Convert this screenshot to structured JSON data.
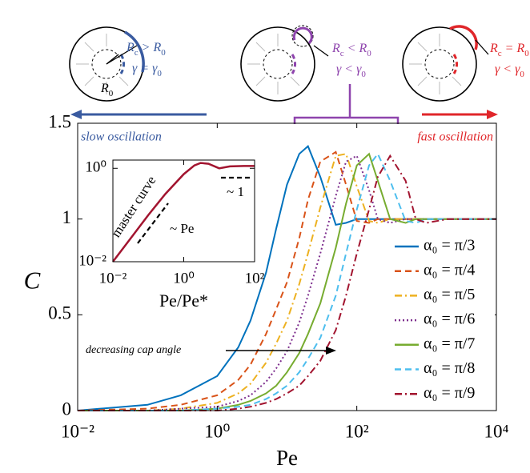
{
  "chart_data": [
    {
      "type": "line",
      "x_scale": "log",
      "x_label": "Pe",
      "y_label": "C",
      "xlim": [
        0.01,
        10000
      ],
      "ylim": [
        0,
        1.5
      ],
      "xticks": [
        {
          "value": 0.01,
          "label": "10⁻²"
        },
        {
          "value": 1,
          "label": "10⁰"
        },
        {
          "value": 100,
          "label": "10²"
        },
        {
          "value": 10000,
          "label": "10⁴"
        }
      ],
      "yticks": [
        0,
        0.5,
        1,
        1.5
      ],
      "x": [
        0.01,
        0.1,
        0.3,
        1,
        2,
        3,
        5,
        7,
        10,
        15,
        20,
        30,
        50,
        70,
        100,
        150,
        200,
        300,
        500,
        700,
        1000,
        2000,
        10000
      ],
      "series": [
        {
          "name": "α₀ = π/3",
          "color": "#0072bd",
          "style": "solid",
          "values": [
            0,
            0.03,
            0.08,
            0.18,
            0.33,
            0.47,
            0.72,
            0.95,
            1.18,
            1.34,
            1.38,
            1.22,
            0.97,
            0.98,
            1.0,
            1.0,
            1.0,
            1.0,
            1.0,
            1.0,
            1.0,
            1.0,
            1.0
          ]
        },
        {
          "name": "α₀ = π/4",
          "color": "#d95319",
          "style": "dashed",
          "values": [
            0,
            0.01,
            0.03,
            0.08,
            0.16,
            0.24,
            0.4,
            0.53,
            0.67,
            0.9,
            1.1,
            1.3,
            1.35,
            1.18,
            0.99,
            0.98,
            1.0,
            1.0,
            1.0,
            1.0,
            1.0,
            1.0,
            1.0
          ]
        },
        {
          "name": "α₀ = π/5",
          "color": "#edb120",
          "style": "dashdot",
          "values": [
            0,
            0,
            0.01,
            0.04,
            0.09,
            0.14,
            0.25,
            0.35,
            0.47,
            0.66,
            0.82,
            1.06,
            1.33,
            1.34,
            1.17,
            0.99,
            0.98,
            1.0,
            1.0,
            1.0,
            1.0,
            1.0,
            1.0
          ]
        },
        {
          "name": "α₀ = π/6",
          "color": "#7e2f8e",
          "style": "dotted",
          "values": [
            0,
            0,
            0.01,
            0.02,
            0.05,
            0.08,
            0.15,
            0.22,
            0.31,
            0.46,
            0.6,
            0.82,
            1.12,
            1.3,
            1.33,
            1.15,
            1.0,
            0.98,
            1.0,
            1.0,
            1.0,
            1.0,
            1.0
          ]
        },
        {
          "name": "α₀ = π/7",
          "color": "#77ac30",
          "style": "solid",
          "values": [
            0,
            0,
            0,
            0.01,
            0.03,
            0.05,
            0.09,
            0.13,
            0.2,
            0.3,
            0.4,
            0.56,
            0.85,
            1.08,
            1.28,
            1.34,
            1.2,
            1.0,
            0.98,
            1.0,
            1.0,
            1.0,
            1.0
          ]
        },
        {
          "name": "α₀ = π/8",
          "color": "#4dbeee",
          "style": "dashed",
          "values": [
            0,
            0,
            0,
            0.01,
            0.02,
            0.03,
            0.06,
            0.09,
            0.13,
            0.2,
            0.27,
            0.38,
            0.6,
            0.82,
            1.05,
            1.28,
            1.34,
            1.2,
            0.99,
            0.98,
            1.0,
            1.0,
            1.0
          ]
        },
        {
          "name": "α₀ = π/9",
          "color": "#a2142f",
          "style": "dashdot",
          "values": [
            0,
            0,
            0,
            0,
            0.01,
            0.02,
            0.04,
            0.06,
            0.09,
            0.13,
            0.18,
            0.26,
            0.42,
            0.6,
            0.82,
            1.05,
            1.22,
            1.33,
            1.2,
            1.0,
            0.98,
            1.0,
            1.0
          ]
        }
      ],
      "annotations": [
        "slow oscillation",
        "fast oscillation",
        "decreasing cap angle"
      ],
      "schematic_labels": [
        [
          [
            "R",
            "c",
            " > R",
            "0"
          ],
          [
            "γ = γ",
            "0"
          ],
          [
            "R",
            "0"
          ]
        ],
        [
          [
            "R",
            "c",
            " < R",
            "0"
          ],
          [
            "γ < γ",
            "0"
          ]
        ],
        [
          [
            "R",
            "c",
            " = R",
            "0"
          ],
          [
            "γ < γ",
            "0"
          ]
        ]
      ]
    },
    {
      "type": "line",
      "x_scale": "log",
      "y_scale": "log",
      "x_label": "Pe/Pe*",
      "xlim": [
        0.01,
        100
      ],
      "ylim": [
        0.01,
        1.5
      ],
      "xticks": [
        {
          "value": 0.01,
          "label": "10⁻²"
        },
        {
          "value": 1,
          "label": "10⁰"
        },
        {
          "value": 100,
          "label": "10²"
        }
      ],
      "yticks": [
        {
          "value": 0.01,
          "label": "10⁻²"
        },
        {
          "value": 1,
          "label": "10⁰"
        }
      ],
      "x": [
        0.01,
        0.03,
        0.1,
        0.3,
        1,
        2,
        3,
        5,
        10,
        20,
        50,
        100
      ],
      "series": [
        {
          "color": "#a2142f",
          "style": "solid",
          "values": [
            0.01,
            0.03,
            0.1,
            0.28,
            0.75,
            1.15,
            1.3,
            1.25,
            1.0,
            1.1,
            1.12,
            1.12
          ]
        }
      ],
      "annotations": [
        "master curve",
        "~ Pe",
        "~ 1"
      ]
    }
  ]
}
